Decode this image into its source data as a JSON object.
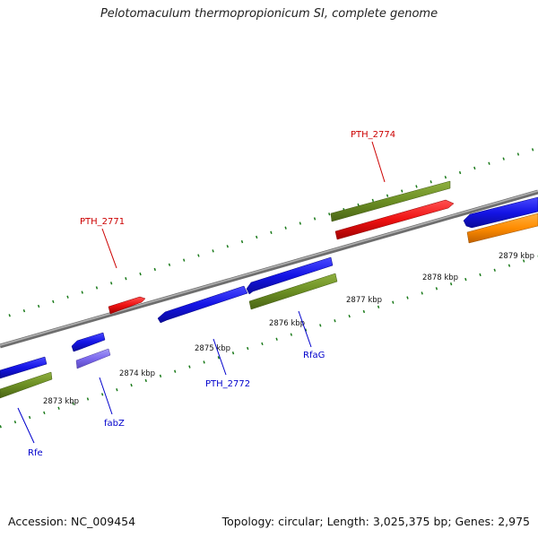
{
  "title": "Pelotomaculum thermopropionicum SI, complete genome",
  "footer": {
    "accession": "Accession: NC_009454",
    "summary": "Topology: circular; Length: 3,025,375 bp; Genes: 2,975"
  },
  "scale_labels": [
    "2873 kbp",
    "2874 kbp",
    "2875 kbp",
    "2876 kbp",
    "2877 kbp",
    "2878 kbp",
    "2879 kbp"
  ],
  "gene_labels": [
    {
      "text": "PTH_2771",
      "color": "#cc0000"
    },
    {
      "text": "PTH_2774",
      "color": "#cc0000"
    },
    {
      "text": "Rfe",
      "color": "#0000cc"
    },
    {
      "text": "fabZ",
      "color": "#0000cc"
    },
    {
      "text": "PTH_2772",
      "color": "#0000cc"
    },
    {
      "text": "RfaG",
      "color": "#0000cc"
    }
  ],
  "colors": {
    "backbone": "#8c8c8c",
    "ticks": "#1a7a1a",
    "cds_blue": "#1414e6",
    "cds_green": "#6b8e23",
    "cds_red": "#ee1111",
    "cds_purple": "#7b68ee",
    "cds_orange": "#ff8c00"
  }
}
